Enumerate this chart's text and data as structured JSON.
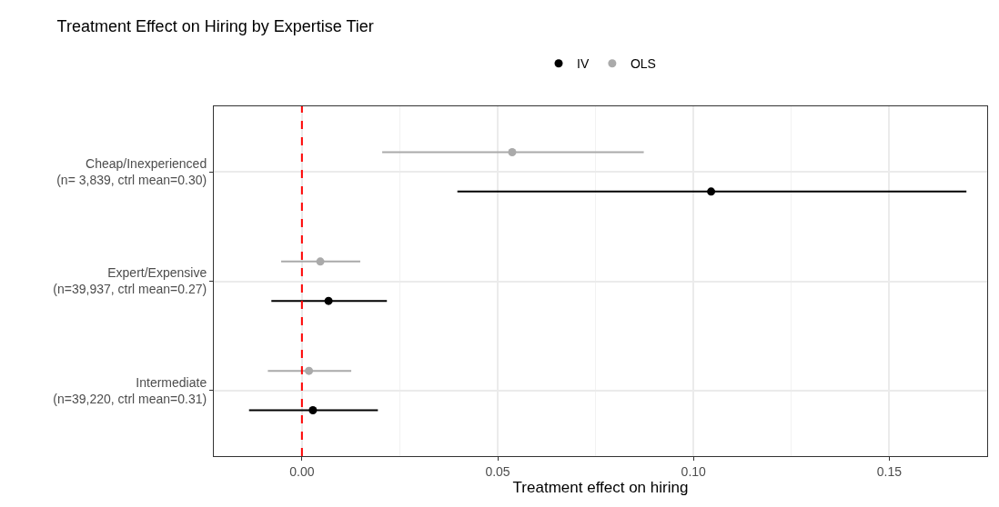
{
  "chart_data": {
    "type": "scatter",
    "orientation": "horizontal",
    "title": "Treatment Effect on Hiring by Expertise Tier",
    "xlabel": "Treatment effect on hiring",
    "categories": [
      "Cheap/Inexperienced\n(n= 3,839, ctrl mean=0.30)",
      "Expert/Expensive\n(n=39,937, ctrl mean=0.27)",
      "Intermediate\n(n=39,220, ctrl mean=0.31)"
    ],
    "series": [
      {
        "name": "IV",
        "color": "#000000",
        "values": [
          0.1045,
          0.0068,
          0.0028
        ],
        "errors": [
          [
            0.0397,
            0.1697
          ],
          [
            -0.0078,
            0.0217
          ],
          [
            -0.0135,
            0.0194
          ]
        ]
      },
      {
        "name": "OLS",
        "color": "#aaaaaa",
        "values": [
          0.0537,
          0.0047,
          0.0018
        ],
        "errors": [
          [
            0.0205,
            0.0873
          ],
          [
            -0.0053,
            0.0149
          ],
          [
            -0.0087,
            0.0126
          ]
        ]
      }
    ],
    "xlim": [
      -0.0225,
      0.175
    ],
    "xticks": [
      {
        "value": 0,
        "label": "0.00"
      },
      {
        "value": 0.05,
        "label": "0.05"
      },
      {
        "value": 0.1,
        "label": "0.10"
      },
      {
        "value": 0.15,
        "label": "0.15"
      }
    ],
    "ref_lines": [
      {
        "axis": "x",
        "value": 0,
        "color": "#ff0000",
        "line_style": "dashed"
      }
    ],
    "grid": true,
    "legend": "top",
    "marker": "circle"
  }
}
